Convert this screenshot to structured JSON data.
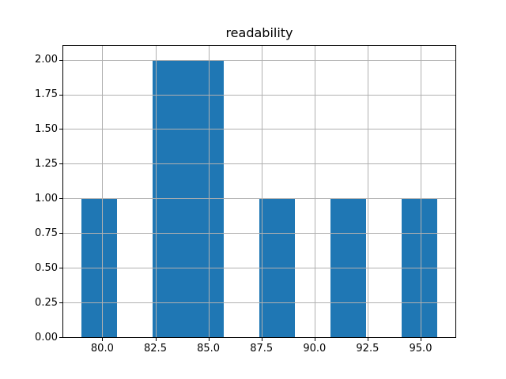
{
  "figure": {
    "background": "#ffffff"
  },
  "chart_data": {
    "type": "bar",
    "subtype": "histogram",
    "title": "readability",
    "xlabel": "",
    "ylabel": "",
    "bin_edges": [
      79.0,
      80.68,
      82.36,
      84.04,
      85.72,
      87.4,
      89.08,
      90.76,
      92.44,
      94.12,
      95.8
    ],
    "counts": [
      1,
      0,
      2,
      2,
      0,
      1,
      0,
      1,
      0,
      1
    ],
    "xlim": [
      78.16,
      96.64
    ],
    "ylim": [
      0,
      2.1
    ],
    "x_ticks": [
      80.0,
      82.5,
      85.0,
      87.5,
      90.0,
      92.5,
      95.0
    ],
    "x_tick_labels": [
      "80.0",
      "82.5",
      "85.0",
      "87.5",
      "90.0",
      "92.5",
      "95.0"
    ],
    "y_ticks": [
      0.0,
      0.25,
      0.5,
      0.75,
      1.0,
      1.25,
      1.5,
      1.75,
      2.0
    ],
    "y_tick_labels": [
      "0.00",
      "0.25",
      "0.50",
      "0.75",
      "1.00",
      "1.25",
      "1.50",
      "1.75",
      "2.00"
    ],
    "grid": true,
    "grid_above_bars": true,
    "legend": false,
    "colors": {
      "bar": "#1f77b4",
      "grid": "#b0b0b0",
      "spine": "#000000",
      "text": "#000000"
    }
  }
}
